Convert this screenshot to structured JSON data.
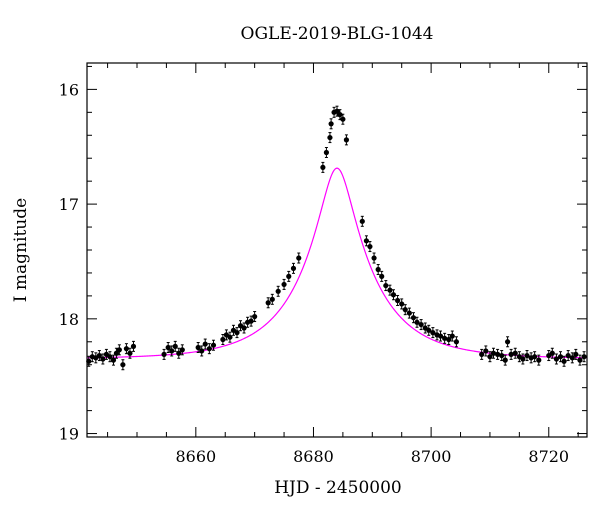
{
  "chart_data": {
    "type": "scatter",
    "title": "OGLE-2019-BLG-1044",
    "xlabel": "HJD - 2450000",
    "ylabel": "I magnitude",
    "xlim": [
      8641.5,
      8726.5
    ],
    "ylim": [
      19.03,
      15.77
    ],
    "y_inverted": true,
    "xticks": [
      8660,
      8680,
      8700,
      8720
    ],
    "yticks": [
      16,
      17,
      18,
      19
    ],
    "grid": false,
    "model": {
      "name": "",
      "color": "#ff00ff",
      "t0": 8684.0,
      "u0": 0.22,
      "tE": 12,
      "baseline_mag": 18.35,
      "blending_fs": 1.0
    },
    "series": [
      {
        "marker": "filled-circle-with-errorbar",
        "color": "#000000",
        "points": [
          {
            "x": 8641.8,
            "y": 18.37
          },
          {
            "x": 8642.4,
            "y": 18.33
          },
          {
            "x": 8643.0,
            "y": 18.34
          },
          {
            "x": 8643.6,
            "y": 18.32
          },
          {
            "x": 8644.2,
            "y": 18.35
          },
          {
            "x": 8644.8,
            "y": 18.31
          },
          {
            "x": 8645.4,
            "y": 18.33
          },
          {
            "x": 8646.0,
            "y": 18.36
          },
          {
            "x": 8646.5,
            "y": 18.3
          },
          {
            "x": 8647.0,
            "y": 18.27
          },
          {
            "x": 8647.6,
            "y": 18.4
          },
          {
            "x": 8648.2,
            "y": 18.26
          },
          {
            "x": 8648.8,
            "y": 18.3
          },
          {
            "x": 8649.4,
            "y": 18.24
          },
          {
            "x": 8654.6,
            "y": 18.31
          },
          {
            "x": 8655.3,
            "y": 18.25
          },
          {
            "x": 8655.9,
            "y": 18.28
          },
          {
            "x": 8656.5,
            "y": 18.24
          },
          {
            "x": 8657.1,
            "y": 18.3
          },
          {
            "x": 8657.7,
            "y": 18.27
          },
          {
            "x": 8660.4,
            "y": 18.25
          },
          {
            "x": 8661.0,
            "y": 18.28
          },
          {
            "x": 8661.6,
            "y": 18.22
          },
          {
            "x": 8662.3,
            "y": 18.26
          },
          {
            "x": 8663.0,
            "y": 18.23
          },
          {
            "x": 8664.6,
            "y": 18.18
          },
          {
            "x": 8665.2,
            "y": 18.14
          },
          {
            "x": 8665.8,
            "y": 18.16
          },
          {
            "x": 8666.4,
            "y": 18.1
          },
          {
            "x": 8667.0,
            "y": 18.12
          },
          {
            "x": 8667.6,
            "y": 18.06
          },
          {
            "x": 8668.2,
            "y": 18.08
          },
          {
            "x": 8668.8,
            "y": 18.03
          },
          {
            "x": 8669.4,
            "y": 18.02
          },
          {
            "x": 8670.0,
            "y": 17.98
          },
          {
            "x": 8672.3,
            "y": 17.86
          },
          {
            "x": 8673.0,
            "y": 17.83
          },
          {
            "x": 8674.0,
            "y": 17.76
          },
          {
            "x": 8675.0,
            "y": 17.7
          },
          {
            "x": 8675.8,
            "y": 17.63
          },
          {
            "x": 8676.6,
            "y": 17.56
          },
          {
            "x": 8677.5,
            "y": 17.47
          },
          {
            "x": 8681.6,
            "y": 16.68
          },
          {
            "x": 8682.2,
            "y": 16.55
          },
          {
            "x": 8682.8,
            "y": 16.42
          },
          {
            "x": 8683.0,
            "y": 16.3
          },
          {
            "x": 8683.5,
            "y": 16.2
          },
          {
            "x": 8684.0,
            "y": 16.19
          },
          {
            "x": 8684.5,
            "y": 16.22
          },
          {
            "x": 8685.0,
            "y": 16.26
          },
          {
            "x": 8685.6,
            "y": 16.44
          },
          {
            "x": 8688.3,
            "y": 17.15
          },
          {
            "x": 8689.0,
            "y": 17.32
          },
          {
            "x": 8689.6,
            "y": 17.37
          },
          {
            "x": 8690.3,
            "y": 17.47
          },
          {
            "x": 8691.0,
            "y": 17.57
          },
          {
            "x": 8691.6,
            "y": 17.63
          },
          {
            "x": 8692.3,
            "y": 17.71
          },
          {
            "x": 8693.0,
            "y": 17.75
          },
          {
            "x": 8693.6,
            "y": 17.79
          },
          {
            "x": 8694.3,
            "y": 17.84
          },
          {
            "x": 8695.0,
            "y": 17.87
          },
          {
            "x": 8695.6,
            "y": 17.92
          },
          {
            "x": 8696.3,
            "y": 17.95
          },
          {
            "x": 8697.0,
            "y": 17.99
          },
          {
            "x": 8697.6,
            "y": 18.03
          },
          {
            "x": 8698.3,
            "y": 18.05
          },
          {
            "x": 8699.0,
            "y": 18.08
          },
          {
            "x": 8699.6,
            "y": 18.1
          },
          {
            "x": 8700.3,
            "y": 18.12
          },
          {
            "x": 8701.0,
            "y": 18.14
          },
          {
            "x": 8701.6,
            "y": 18.15
          },
          {
            "x": 8702.3,
            "y": 18.17
          },
          {
            "x": 8703.0,
            "y": 18.18
          },
          {
            "x": 8703.6,
            "y": 18.15
          },
          {
            "x": 8704.3,
            "y": 18.2
          },
          {
            "x": 8708.6,
            "y": 18.31
          },
          {
            "x": 8709.3,
            "y": 18.28
          },
          {
            "x": 8710.0,
            "y": 18.33
          },
          {
            "x": 8710.6,
            "y": 18.3
          },
          {
            "x": 8711.3,
            "y": 18.31
          },
          {
            "x": 8712.0,
            "y": 18.32
          },
          {
            "x": 8712.6,
            "y": 18.36
          },
          {
            "x": 8713.0,
            "y": 18.2
          },
          {
            "x": 8713.6,
            "y": 18.31
          },
          {
            "x": 8714.3,
            "y": 18.3
          },
          {
            "x": 8715.0,
            "y": 18.33
          },
          {
            "x": 8715.6,
            "y": 18.35
          },
          {
            "x": 8716.3,
            "y": 18.32
          },
          {
            "x": 8717.0,
            "y": 18.34
          },
          {
            "x": 8717.6,
            "y": 18.33
          },
          {
            "x": 8718.3,
            "y": 18.36
          },
          {
            "x": 8720.0,
            "y": 18.32
          },
          {
            "x": 8720.6,
            "y": 18.3
          },
          {
            "x": 8721.3,
            "y": 18.35
          },
          {
            "x": 8722.0,
            "y": 18.33
          },
          {
            "x": 8722.6,
            "y": 18.37
          },
          {
            "x": 8723.3,
            "y": 18.32
          },
          {
            "x": 8724.0,
            "y": 18.34
          },
          {
            "x": 8724.6,
            "y": 18.31
          },
          {
            "x": 8725.3,
            "y": 18.36
          },
          {
            "x": 8726.0,
            "y": 18.33
          }
        ]
      }
    ]
  }
}
